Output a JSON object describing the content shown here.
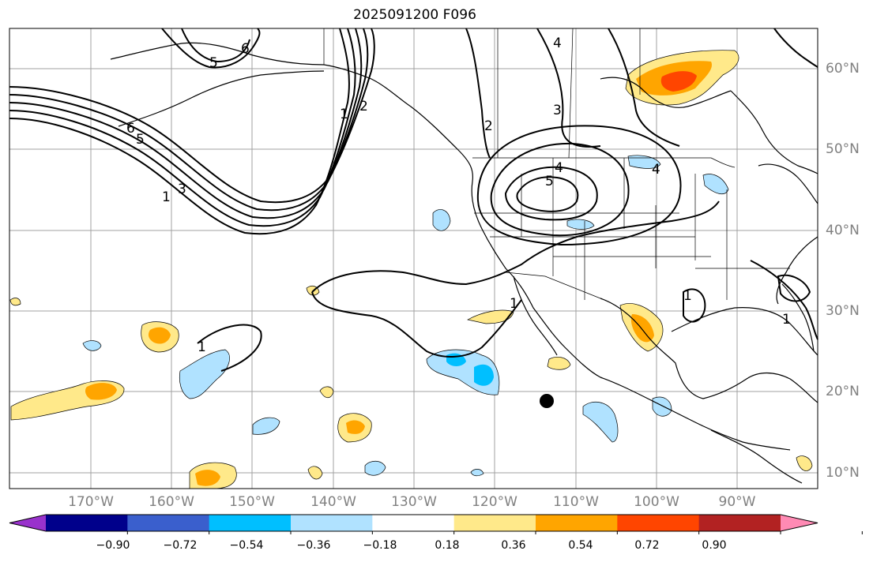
{
  "title": "2025091200 F096",
  "lon_labels": [
    "170°W",
    "160°W",
    "150°W",
    "140°W",
    "130°W",
    "120°W",
    "110°W",
    "100°W",
    "90°W"
  ],
  "lat_labels": [
    "60°N",
    "50°N",
    "40°N",
    "30°N",
    "20°N",
    "10°N"
  ],
  "colorbar": {
    "ticks": [
      "−0.90",
      "−0.72",
      "−0.54",
      "−0.36",
      "−0.18",
      "0.18",
      "0.36",
      "0.54",
      "0.72",
      "0.90"
    ],
    "colors": [
      "#9932cc",
      "#00008b",
      "#3a5fcd",
      "#00bfff",
      "#b0e2ff",
      "#ffffff",
      "#ffe98a",
      "#ffa500",
      "#ff4500",
      "#b22222",
      "#ff8ab4"
    ]
  },
  "contour_labels": [
    "6",
    "5",
    "6",
    "5",
    "1",
    "3",
    "1",
    "2",
    "2",
    "4",
    "3",
    "4",
    "5",
    "4",
    "1",
    "1",
    "1",
    "1"
  ],
  "marker": "filled-circle",
  "colors": {
    "grid": "#a0a0a0",
    "contour": "#000000",
    "land": "#000000",
    "shade_pos_1": "#ffe98a",
    "shade_pos_2": "#ffa500",
    "shade_pos_3": "#ff4500",
    "shade_neg_1": "#b0e2ff",
    "shade_neg_2": "#00bfff"
  }
}
